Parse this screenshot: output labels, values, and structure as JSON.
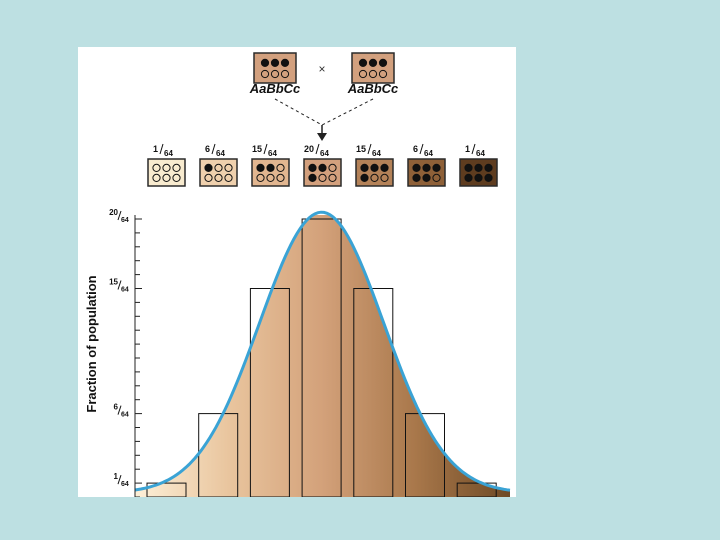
{
  "parents": {
    "left": {
      "genotype": "AaBbCc",
      "color": "#d2a07e",
      "alleles": [
        1,
        1,
        1,
        0,
        0,
        0
      ]
    },
    "right": {
      "genotype": "AaBbCc",
      "color": "#d2a07e",
      "alleles": [
        1,
        1,
        1,
        0,
        0,
        0
      ]
    },
    "cross_symbol": "×"
  },
  "offspring": [
    {
      "num": "1",
      "den": "64",
      "color": "#f8ebcf",
      "dark": 0
    },
    {
      "num": "6",
      "den": "64",
      "color": "#efd0ad",
      "dark": 1
    },
    {
      "num": "15",
      "den": "64",
      "color": "#e2b690",
      "dark": 2
    },
    {
      "num": "20",
      "den": "64",
      "color": "#d3a07d",
      "dark": 3
    },
    {
      "num": "15",
      "den": "64",
      "color": "#b48258",
      "dark": 4
    },
    {
      "num": "6",
      "den": "64",
      "color": "#8e6038",
      "dark": 5
    },
    {
      "num": "1",
      "den": "64",
      "color": "#5e3c1f",
      "dark": 6
    }
  ],
  "chart_data": {
    "type": "bar",
    "ylabel": "Fraction of population",
    "values": [
      1,
      6,
      15,
      20,
      15,
      6,
      1
    ],
    "ymax": 20,
    "yticks": [
      {
        "value": 1,
        "num": "1",
        "den": "64"
      },
      {
        "value": 6,
        "num": "6",
        "den": "64"
      },
      {
        "value": 15,
        "num": "15",
        "den": "64"
      },
      {
        "value": 20,
        "num": "20",
        "den": "64"
      }
    ],
    "gradient": [
      "#fdf0d8",
      "#e9c59e",
      "#d3a17a",
      "#a8774a",
      "#6e4a25"
    ],
    "curve_color": "#3aa3d5"
  }
}
